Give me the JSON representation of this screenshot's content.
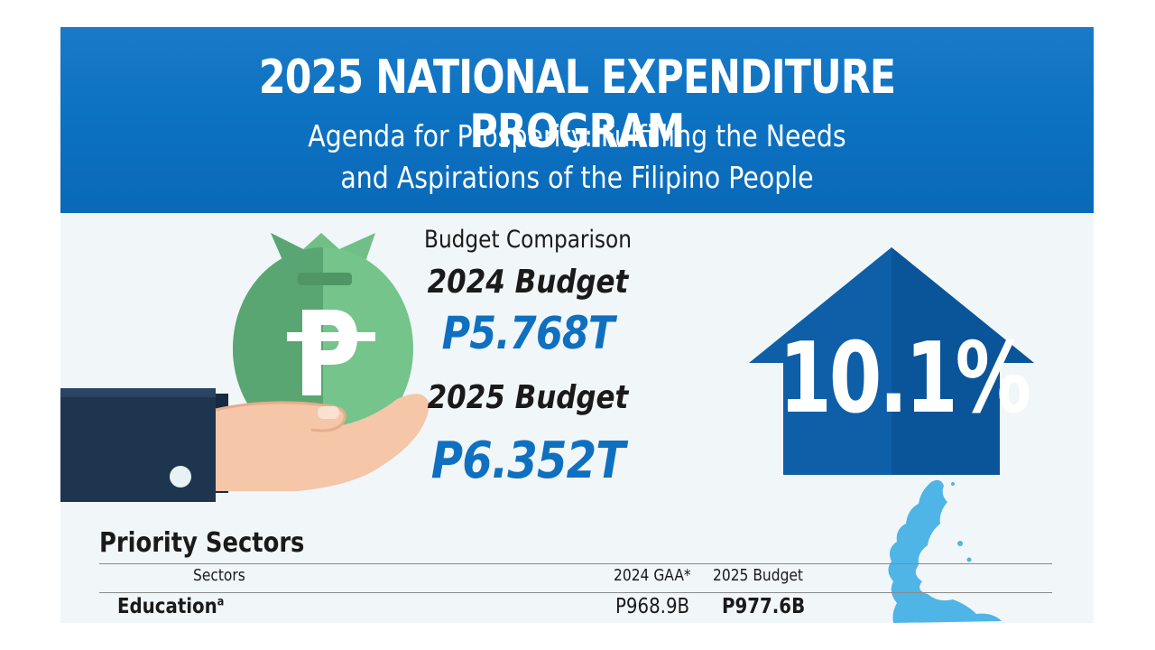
{
  "header": {
    "title": "2025 NATIONAL EXPENDITURE PROGRAM",
    "subtitle_line1": "Agenda for Prosperity: Fulfilling the Needs",
    "subtitle_line2": "and Aspirations of the Filipino People"
  },
  "comparison": {
    "heading": "Budget Comparison",
    "budget_2024_label": "2024 Budget",
    "budget_2024_value": "P5.768T",
    "budget_2025_label": "2025 Budget",
    "budget_2025_value": "P6.352T"
  },
  "growth": {
    "value": "10.1%",
    "icon": "up-arrow-icon"
  },
  "illustration": {
    "bag_symbol": "₱",
    "icons": [
      "money-bag-icon",
      "hand-icon",
      "philippines-map-icon"
    ]
  },
  "priority_sectors": {
    "title": "Priority Sectors",
    "columns": [
      "Sectors",
      "2024 GAA*",
      "2025 Budget"
    ],
    "rows": [
      {
        "sector": "Education",
        "note": "a",
        "gaa_2024": "P968.9B",
        "budget_2025": "P977.6B"
      }
    ]
  },
  "colors": {
    "header_blue": "#0c72c2",
    "amount_blue": "#0f70c0",
    "arrow_blue": "#0e5fa8",
    "bag_green": "#6fbf86",
    "sleeve_navy": "#1e3550",
    "map_blue": "#4fb4e6"
  }
}
